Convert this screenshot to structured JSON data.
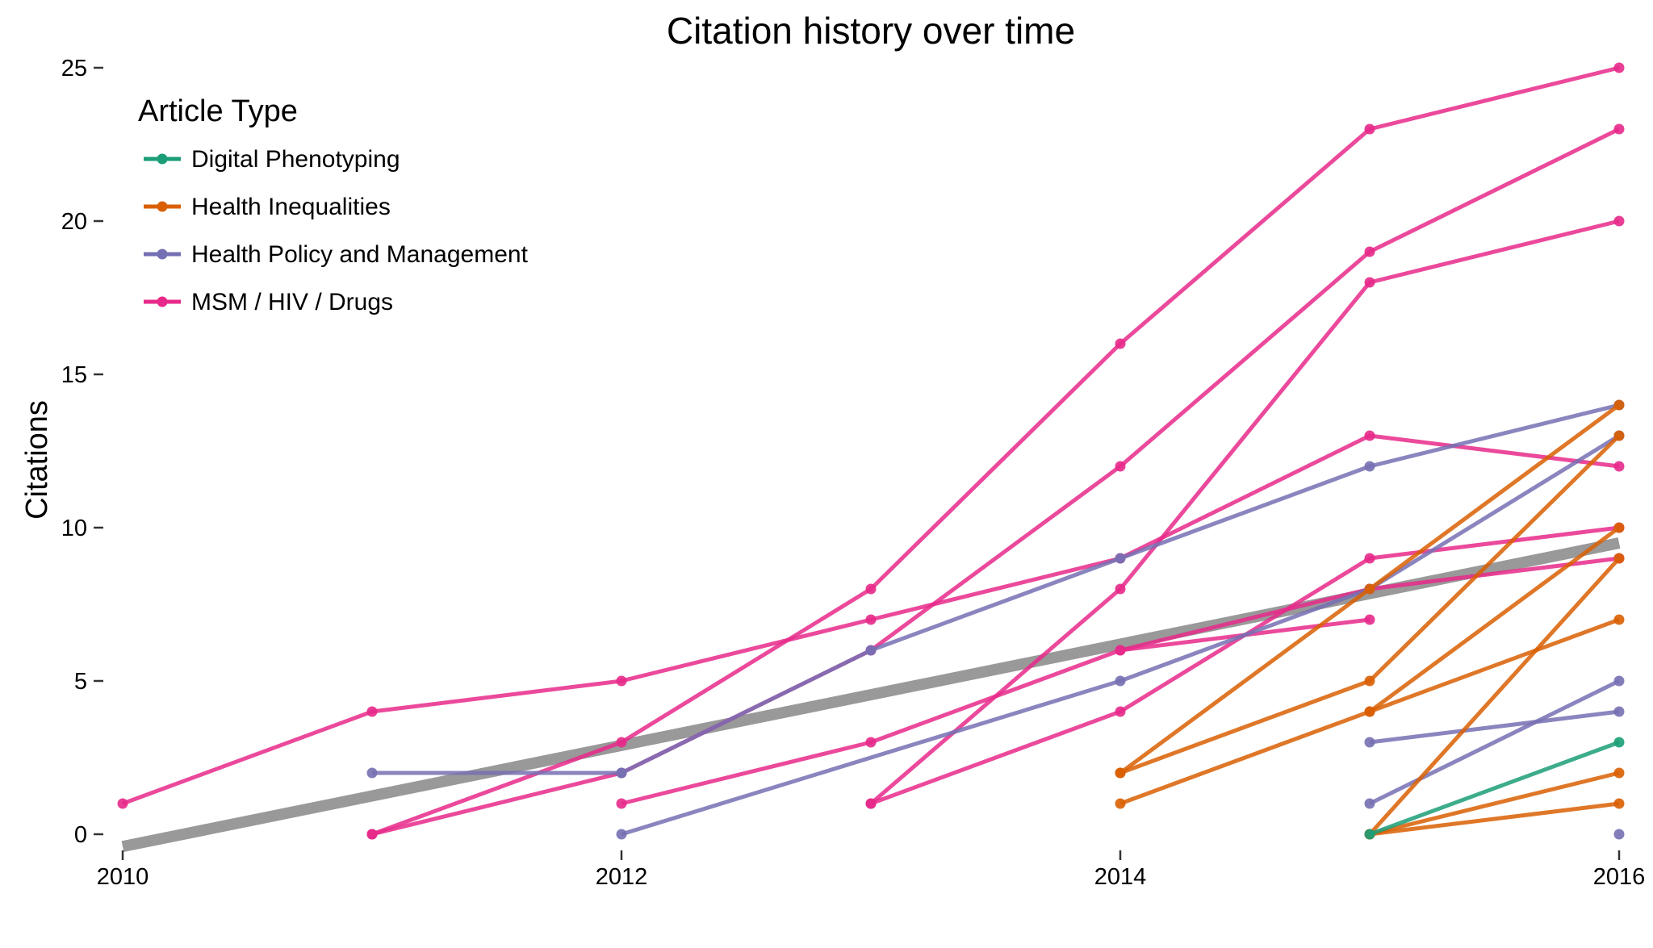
{
  "chart_data": {
    "type": "line",
    "title": "Citation history over time",
    "xlabel": "",
    "ylabel": "Citations",
    "xlim": [
      2010,
      2016
    ],
    "ylim": [
      0,
      25
    ],
    "x_ticks": [
      "2010",
      "2012",
      "2014",
      "2016"
    ],
    "y_ticks": [
      "0",
      "5",
      "10",
      "15",
      "20",
      "25"
    ],
    "grid": false,
    "legend": {
      "title": "Article Type",
      "placement": "top-left",
      "entries": [
        {
          "label": "Digital Phenotyping",
          "color": "#1b9e77"
        },
        {
          "label": "Health Inequalities",
          "color": "#d95f02"
        },
        {
          "label": "Health Policy and Management",
          "color": "#7570b3"
        },
        {
          "label": "MSM / HIV / Drugs",
          "color": "#e7298a"
        }
      ]
    },
    "trend_line": {
      "x": [
        2010,
        2016
      ],
      "y": [
        -0.4,
        9.5
      ],
      "color": "#999999"
    },
    "series": [
      {
        "group": "MSM / HIV / Drugs",
        "x": [
          2010,
          2011,
          2012,
          2013,
          2014,
          2015,
          2016
        ],
        "y": [
          1,
          4,
          5,
          7,
          9,
          13,
          12
        ]
      },
      {
        "group": "MSM / HIV / Drugs",
        "x": [
          2011,
          2012,
          2013,
          2014,
          2015,
          2016
        ],
        "y": [
          0,
          3,
          8,
          16,
          23,
          25
        ]
      },
      {
        "group": "MSM / HIV / Drugs",
        "x": [
          2011,
          2012,
          2013,
          2014,
          2015,
          2016
        ],
        "y": [
          0,
          2,
          6,
          12,
          19,
          23
        ]
      },
      {
        "group": "MSM / HIV / Drugs",
        "x": [
          2012,
          2013,
          2014,
          2015
        ],
        "y": [
          1,
          3,
          6,
          7
        ]
      },
      {
        "group": "MSM / HIV / Drugs",
        "x": [
          2013,
          2014,
          2015,
          2016
        ],
        "y": [
          1,
          8,
          18,
          20
        ]
      },
      {
        "group": "MSM / HIV / Drugs",
        "x": [
          2013,
          2014,
          2015,
          2016
        ],
        "y": [
          1,
          4,
          9,
          10
        ]
      },
      {
        "group": "MSM / HIV / Drugs",
        "x": [
          2014,
          2015,
          2016
        ],
        "y": [
          6,
          8,
          9
        ]
      },
      {
        "group": "Health Policy and Management",
        "x": [
          2011,
          2012
        ],
        "y": [
          2,
          2
        ]
      },
      {
        "group": "Health Policy and Management",
        "x": [
          2012,
          2013,
          2014,
          2015,
          2016
        ],
        "y": [
          2,
          6,
          9,
          12,
          14
        ]
      },
      {
        "group": "Health Policy and Management",
        "x": [
          2012,
          2014,
          2015,
          2016
        ],
        "y": [
          0,
          5,
          8,
          13
        ]
      },
      {
        "group": "Health Policy and Management",
        "x": [
          2015,
          2016
        ],
        "y": [
          3,
          4
        ]
      },
      {
        "group": "Health Policy and Management",
        "x": [
          2015,
          2016
        ],
        "y": [
          1,
          5
        ]
      },
      {
        "group": "Health Policy and Management",
        "x": [
          2016
        ],
        "y": [
          0
        ]
      },
      {
        "group": "Health Inequalities",
        "x": [
          2014,
          2015,
          2016
        ],
        "y": [
          2,
          8,
          14
        ]
      },
      {
        "group": "Health Inequalities",
        "x": [
          2014,
          2015,
          2016
        ],
        "y": [
          2,
          5,
          13
        ]
      },
      {
        "group": "Health Inequalities",
        "x": [
          2014,
          2015,
          2016
        ],
        "y": [
          1,
          4,
          7
        ]
      },
      {
        "group": "Health Inequalities",
        "x": [
          2015,
          2016
        ],
        "y": [
          4,
          10
        ]
      },
      {
        "group": "Health Inequalities",
        "x": [
          2015,
          2016
        ],
        "y": [
          0,
          9
        ]
      },
      {
        "group": "Health Inequalities",
        "x": [
          2015,
          2016
        ],
        "y": [
          0,
          2
        ]
      },
      {
        "group": "Health Inequalities",
        "x": [
          2015,
          2016
        ],
        "y": [
          0,
          1
        ]
      },
      {
        "group": "Digital Phenotyping",
        "x": [
          2015,
          2016
        ],
        "y": [
          0,
          3
        ]
      }
    ]
  }
}
